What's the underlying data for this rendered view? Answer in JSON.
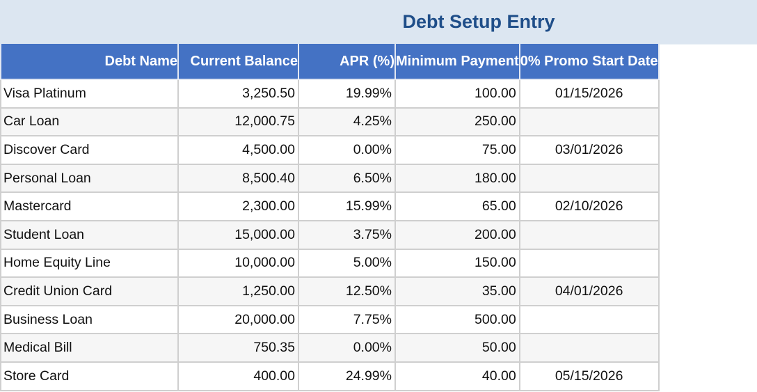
{
  "title": "Debt Setup Entry",
  "colors": {
    "title_band": "#dce6f1",
    "header_bg": "#4472c4",
    "title_text": "#1f4e89"
  },
  "columns": [
    "Debt Name",
    "Current Balance",
    "APR (%)",
    "Minimum Payment",
    "0% Promo Start Date"
  ],
  "rows": [
    [
      "Visa Platinum",
      "3,250.50",
      "19.99%",
      "100.00",
      "01/15/2026"
    ],
    [
      "Car Loan",
      "12,000.75",
      "4.25%",
      "250.00",
      ""
    ],
    [
      "Discover Card",
      "4,500.00",
      "0.00%",
      "75.00",
      "03/01/2026"
    ],
    [
      "Personal Loan",
      "8,500.40",
      "6.50%",
      "180.00",
      ""
    ],
    [
      "Mastercard",
      "2,300.00",
      "15.99%",
      "65.00",
      "02/10/2026"
    ],
    [
      "Student Loan",
      "15,000.00",
      "3.75%",
      "200.00",
      ""
    ],
    [
      "Home Equity Line",
      "10,000.00",
      "5.00%",
      "150.00",
      ""
    ],
    [
      "Credit Union Card",
      "1,250.00",
      "12.50%",
      "35.00",
      "04/01/2026"
    ],
    [
      "Business Loan",
      "20,000.00",
      "7.75%",
      "500.00",
      ""
    ],
    [
      "Medical Bill",
      "750.35",
      "0.00%",
      "50.00",
      ""
    ],
    [
      "Store Card",
      "400.00",
      "24.99%",
      "40.00",
      "05/15/2026"
    ]
  ]
}
